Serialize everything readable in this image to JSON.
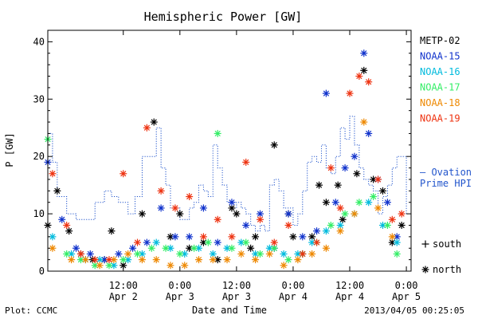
{
  "chart_data": {
    "type": "scatter",
    "title": "Hemispheric Power [GW]",
    "ylabel": "P [GW]",
    "xlabel": "Date and Time",
    "ylim": [
      0,
      42
    ],
    "xlim": [
      "2013-04-01T20:00",
      "2013-04-05T01:00"
    ],
    "y_ticks": [
      0,
      10,
      20,
      30,
      40
    ],
    "x_ticks": [
      {
        "time": "2013-04-02T12:00",
        "label": "12:00",
        "sublabel": "Apr 2"
      },
      {
        "time": "2013-04-03T00:00",
        "label": "0:00",
        "sublabel": "Apr 3"
      },
      {
        "time": "2013-04-03T12:00",
        "label": "12:00",
        "sublabel": "Apr 3"
      },
      {
        "time": "2013-04-04T00:00",
        "label": "0:00",
        "sublabel": "Apr 4"
      },
      {
        "time": "2013-04-04T12:00",
        "label": "12:00",
        "sublabel": "Apr 4"
      },
      {
        "time": "2013-04-05T00:00",
        "label": "0:00",
        "sublabel": "Apr 5"
      }
    ],
    "marker_legend": [
      {
        "symbol": "+",
        "label": "south"
      },
      {
        "symbol": "*",
        "label": "north"
      }
    ],
    "line_series": {
      "name": "— Ovation Prime HPI",
      "color": "#2255cc",
      "x": [
        "2013-04-01T20:00",
        "2013-04-01T21:00",
        "2013-04-01T22:00",
        "2013-04-02T00:00",
        "2013-04-02T02:00",
        "2013-04-02T04:00",
        "2013-04-02T06:00",
        "2013-04-02T08:00",
        "2013-04-02T09:30",
        "2013-04-02T11:00",
        "2013-04-02T13:00",
        "2013-04-02T14:30",
        "2013-04-02T16:00",
        "2013-04-02T17:00",
        "2013-04-02T18:00",
        "2013-04-02T19:00",
        "2013-04-02T20:00",
        "2013-04-02T21:00",
        "2013-04-02T22:00",
        "2013-04-03T00:00",
        "2013-04-03T01:00",
        "2013-04-03T02:00",
        "2013-04-03T03:00",
        "2013-04-03T04:00",
        "2013-04-03T05:00",
        "2013-04-03T06:00",
        "2013-04-03T07:00",
        "2013-04-03T08:00",
        "2013-04-03T09:00",
        "2013-04-03T10:00",
        "2013-04-03T11:00",
        "2013-04-03T12:00",
        "2013-04-03T13:00",
        "2013-04-03T14:00",
        "2013-04-03T15:00",
        "2013-04-03T16:00",
        "2013-04-03T17:00",
        "2013-04-03T18:00",
        "2013-04-03T19:00",
        "2013-04-03T20:00",
        "2013-04-03T21:00",
        "2013-04-03T22:00",
        "2013-04-04T00:00",
        "2013-04-04T01:00",
        "2013-04-04T02:00",
        "2013-04-04T03:00",
        "2013-04-04T04:00",
        "2013-04-04T05:00",
        "2013-04-04T06:00",
        "2013-04-04T07:00",
        "2013-04-04T08:00",
        "2013-04-04T09:00",
        "2013-04-04T10:00",
        "2013-04-04T11:00",
        "2013-04-04T12:00",
        "2013-04-04T13:00",
        "2013-04-04T14:00",
        "2013-04-04T15:00",
        "2013-04-04T16:00",
        "2013-04-04T17:00",
        "2013-04-04T18:00",
        "2013-04-04T19:00",
        "2013-04-04T20:00",
        "2013-04-04T21:00",
        "2013-04-04T22:00",
        "2013-04-04T23:00",
        "2013-04-05T00:00"
      ],
      "y": [
        24,
        19,
        13,
        10,
        9,
        9,
        12,
        14,
        13,
        12,
        10,
        13,
        20,
        20,
        20,
        25,
        18,
        15,
        11,
        9,
        9,
        11,
        12,
        15,
        14,
        13,
        22,
        18,
        15,
        12,
        11,
        12,
        11,
        10,
        8,
        7,
        8,
        7,
        15,
        16,
        14,
        11,
        8,
        10,
        14,
        19,
        20,
        19,
        22,
        18,
        17,
        20,
        25,
        23,
        27,
        22,
        18,
        16,
        15,
        14,
        10,
        13,
        15,
        18,
        20,
        20,
        10
      ]
    },
    "series": [
      {
        "name": "METP-02",
        "color": "#000000",
        "symbol": "*",
        "x": [
          "2013-04-01T20:00",
          "2013-04-01T22:00",
          "2013-04-02T00:30",
          "2013-04-02T03:00",
          "2013-04-02T05:30",
          "2013-04-02T08:00",
          "2013-04-02T09:30",
          "2013-04-02T12:00",
          "2013-04-02T16:00",
          "2013-04-02T18:30",
          "2013-04-02T22:00",
          "2013-04-03T00:00",
          "2013-04-03T02:00",
          "2013-04-03T05:00",
          "2013-04-03T08:00",
          "2013-04-03T11:00",
          "2013-04-03T12:00",
          "2013-04-03T15:00",
          "2013-04-03T16:00",
          "2013-04-03T20:00",
          "2013-04-03T23:00",
          "2013-04-04T00:00",
          "2013-04-04T02:00",
          "2013-04-04T04:00",
          "2013-04-04T05:30",
          "2013-04-04T07:00",
          "2013-04-04T09:30",
          "2013-04-04T10:30",
          "2013-04-04T13:30",
          "2013-04-04T15:00",
          "2013-04-04T17:00",
          "2013-04-04T19:00",
          "2013-04-04T21:00",
          "2013-04-04T23:00"
        ],
        "y": [
          8,
          14,
          7,
          3,
          2,
          2,
          7,
          1,
          10,
          26,
          6,
          10,
          4,
          5,
          2,
          11,
          10,
          4,
          6,
          22,
          10,
          6,
          3,
          6,
          15,
          12,
          15,
          9,
          17,
          35,
          16,
          14,
          5,
          8
        ]
      },
      {
        "name": "NOAA-15",
        "color": "#1133cc",
        "symbol": "*",
        "x": [
          "2013-04-01T20:00",
          "2013-04-01T23:00",
          "2013-04-02T02:00",
          "2013-04-02T05:00",
          "2013-04-02T08:00",
          "2013-04-02T11:00",
          "2013-04-02T14:00",
          "2013-04-02T17:00",
          "2013-04-02T20:00",
          "2013-04-02T23:00",
          "2013-04-03T02:00",
          "2013-04-03T05:00",
          "2013-04-03T08:00",
          "2013-04-03T11:00",
          "2013-04-03T14:00",
          "2013-04-03T17:00",
          "2013-04-03T20:00",
          "2013-04-03T23:00",
          "2013-04-04T02:00",
          "2013-04-04T05:00",
          "2013-04-04T07:00",
          "2013-04-04T09:00",
          "2013-04-04T11:00",
          "2013-04-04T13:00",
          "2013-04-04T15:00",
          "2013-04-04T16:00",
          "2013-04-04T18:00",
          "2013-04-04T20:00",
          "2013-04-04T22:00"
        ],
        "y": [
          19,
          9,
          4,
          3,
          2,
          3,
          4,
          5,
          11,
          6,
          6,
          11,
          5,
          12,
          8,
          10,
          4,
          10,
          6,
          7,
          31,
          12,
          18,
          20,
          38,
          24,
          16,
          12,
          6
        ]
      },
      {
        "name": "NOAA-16",
        "color": "#00bbdd",
        "symbol": "*",
        "x": [
          "2013-04-01T21:00",
          "2013-04-02T01:00",
          "2013-04-02T04:00",
          "2013-04-02T07:00",
          "2013-04-02T10:00",
          "2013-04-02T13:00",
          "2013-04-02T16:00",
          "2013-04-02T19:00",
          "2013-04-02T22:00",
          "2013-04-03T01:00",
          "2013-04-03T04:00",
          "2013-04-03T07:00",
          "2013-04-03T10:00",
          "2013-04-03T13:00",
          "2013-04-03T16:00",
          "2013-04-03T19:00",
          "2013-04-03T22:00",
          "2013-04-04T01:00",
          "2013-04-04T04:00",
          "2013-04-04T07:00",
          "2013-04-04T10:00",
          "2013-04-04T13:00",
          "2013-04-04T16:00",
          "2013-04-04T19:00",
          "2013-04-04T22:00"
        ],
        "y": [
          6,
          3,
          2,
          2,
          1,
          2,
          3,
          5,
          4,
          3,
          4,
          3,
          4,
          5,
          3,
          4,
          3,
          3,
          5,
          7,
          8,
          10,
          12,
          8,
          5
        ]
      },
      {
        "name": "NOAA-17",
        "color": "#33ee66",
        "symbol": "*",
        "x": [
          "2013-04-01T20:00",
          "2013-04-02T00:00",
          "2013-04-02T03:00",
          "2013-04-02T06:00",
          "2013-04-02T09:00",
          "2013-04-02T12:00",
          "2013-04-02T15:00",
          "2013-04-02T18:00",
          "2013-04-02T21:00",
          "2013-04-03T00:00",
          "2013-04-03T03:00",
          "2013-04-03T06:00",
          "2013-04-03T08:00",
          "2013-04-03T11:00",
          "2013-04-03T14:00",
          "2013-04-03T17:00",
          "2013-04-03T20:00",
          "2013-04-03T23:00",
          "2013-04-04T02:00",
          "2013-04-04T05:00",
          "2013-04-04T08:00",
          "2013-04-04T11:00",
          "2013-04-04T14:00",
          "2013-04-04T17:00",
          "2013-04-04T20:00",
          "2013-04-04T22:00"
        ],
        "y": [
          23,
          3,
          2,
          1,
          1,
          2,
          3,
          4,
          4,
          3,
          4,
          5,
          24,
          4,
          5,
          3,
          4,
          2,
          3,
          5,
          8,
          10,
          12,
          13,
          8,
          3
        ]
      },
      {
        "name": "NOAA-18",
        "color": "#ee8800",
        "symbol": "*",
        "x": [
          "2013-04-01T21:00",
          "2013-04-02T01:00",
          "2013-04-02T04:00",
          "2013-04-02T07:00",
          "2013-04-02T10:00",
          "2013-04-02T13:00",
          "2013-04-02T16:00",
          "2013-04-02T19:00",
          "2013-04-02T22:00",
          "2013-04-03T01:00",
          "2013-04-03T04:00",
          "2013-04-03T07:00",
          "2013-04-03T10:00",
          "2013-04-03T13:00",
          "2013-04-03T16:00",
          "2013-04-03T19:00",
          "2013-04-03T22:00",
          "2013-04-04T01:00",
          "2013-04-04T04:00",
          "2013-04-04T07:00",
          "2013-04-04T10:00",
          "2013-04-04T13:00",
          "2013-04-04T15:00",
          "2013-04-04T18:00",
          "2013-04-04T21:00"
        ],
        "y": [
          4,
          2,
          2,
          1,
          2,
          3,
          2,
          2,
          1,
          1,
          2,
          2,
          2,
          3,
          2,
          3,
          1,
          2,
          3,
          4,
          7,
          10,
          26,
          11,
          6
        ]
      },
      {
        "name": "NOAA-19",
        "color": "#ee3311",
        "symbol": "*",
        "x": [
          "2013-04-01T21:00",
          "2013-04-02T00:00",
          "2013-04-02T03:00",
          "2013-04-02T06:00",
          "2013-04-02T09:00",
          "2013-04-02T12:00",
          "2013-04-02T15:00",
          "2013-04-02T17:00",
          "2013-04-02T20:00",
          "2013-04-02T23:00",
          "2013-04-03T02:00",
          "2013-04-03T05:00",
          "2013-04-03T08:00",
          "2013-04-03T11:00",
          "2013-04-03T14:00",
          "2013-04-03T17:00",
          "2013-04-03T20:00",
          "2013-04-03T23:00",
          "2013-04-04T02:00",
          "2013-04-04T05:00",
          "2013-04-04T08:00",
          "2013-04-04T10:00",
          "2013-04-04T12:00",
          "2013-04-04T14:00",
          "2013-04-04T16:00",
          "2013-04-04T18:00",
          "2013-04-04T21:00",
          "2013-04-04T23:00"
        ],
        "y": [
          17,
          8,
          3,
          2,
          2,
          17,
          5,
          25,
          14,
          11,
          13,
          6,
          9,
          6,
          19,
          9,
          5,
          8,
          3,
          5,
          18,
          11,
          31,
          34,
          33,
          16,
          9,
          10
        ]
      }
    ]
  },
  "legend_title_line2": "Prime HPI",
  "footer": {
    "plot_label": "Plot: CCMC",
    "timestamp": "2013/04/05 00:25:05"
  }
}
